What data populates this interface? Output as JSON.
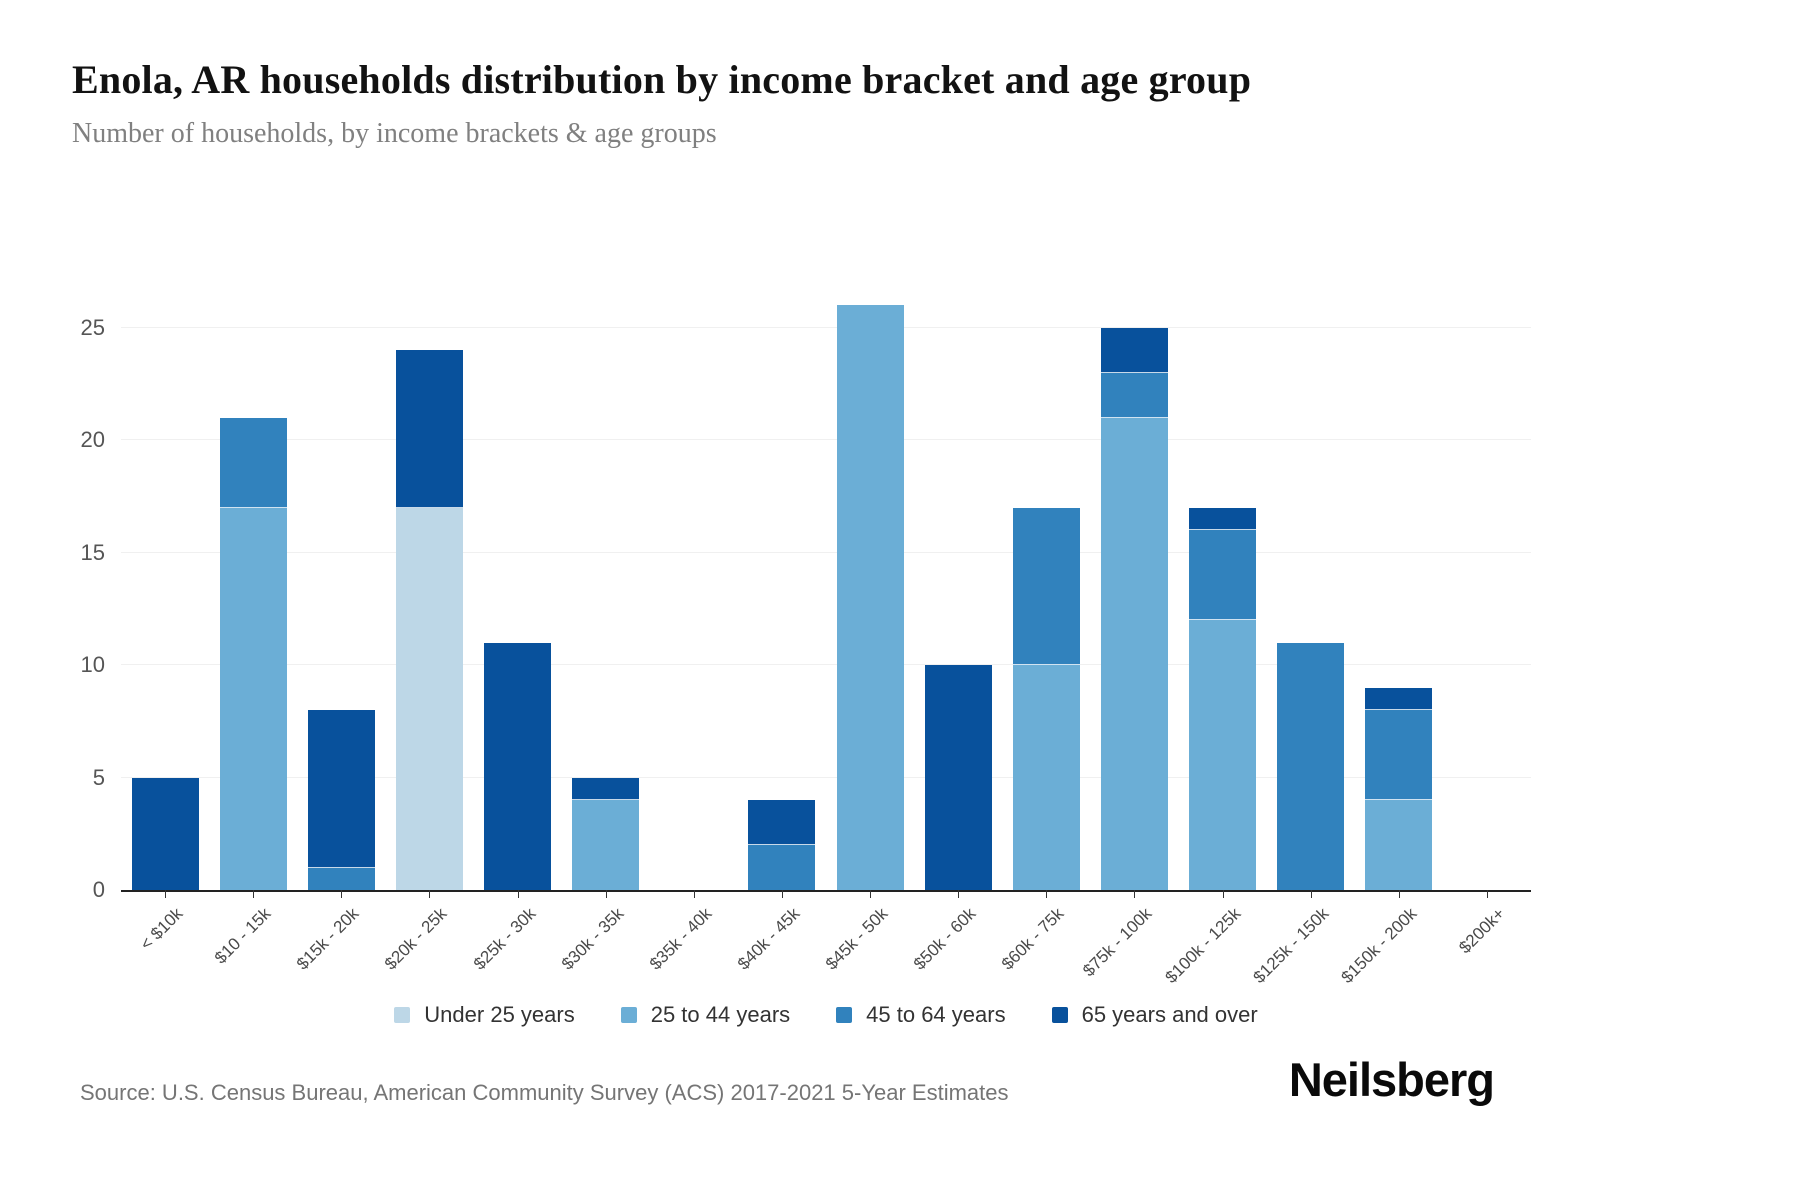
{
  "header": {
    "title": "Enola, AR households distribution by income bracket and age group",
    "subtitle": "Number of households, by income brackets & age groups"
  },
  "footer": {
    "source": "Source: U.S. Census Bureau, American Community Survey (ACS) 2017-2021 5-Year Estimates",
    "brand": "Neilsberg"
  },
  "colors": {
    "under_25": "#bdd7e7",
    "age_25_44": "#6baed6",
    "age_45_64": "#3182bd",
    "age_65_over": "#08519c",
    "axis_line": "#222222",
    "gridline": "#f0f0f0"
  },
  "chart_data": {
    "type": "bar",
    "stacked": true,
    "title": "Enola, AR households distribution by income bracket and age group",
    "xlabel": "",
    "ylabel": "Number of households",
    "ylim": [
      0,
      26
    ],
    "yticks": [
      0,
      5,
      10,
      15,
      20,
      25
    ],
    "grid": true,
    "legend_position": "bottom",
    "categories": [
      "< $10k",
      "$10 - 15k",
      "$15k - 20k",
      "$20k - 25k",
      "$25k - 30k",
      "$30k - 35k",
      "$35k - 40k",
      "$40k - 45k",
      "$45k - 50k",
      "$50k - 60k",
      "$60k - 75k",
      "$75k - 100k",
      "$100k - 125k",
      "$125k - 150k",
      "$150k - 200k",
      "$200k+"
    ],
    "series": [
      {
        "name": "Under 25 years",
        "color": "#bdd7e7",
        "values": [
          0,
          0,
          0,
          17,
          0,
          0,
          0,
          0,
          0,
          0,
          0,
          0,
          0,
          0,
          0,
          0
        ]
      },
      {
        "name": "25 to 44 years",
        "color": "#6baed6",
        "values": [
          0,
          17,
          0,
          0,
          0,
          4,
          0,
          0,
          26,
          0,
          10,
          21,
          12,
          0,
          4,
          0
        ]
      },
      {
        "name": "45 to 64 years",
        "color": "#3182bd",
        "values": [
          0,
          4,
          1,
          0,
          0,
          0,
          0,
          2,
          0,
          0,
          7,
          2,
          4,
          11,
          4,
          0
        ]
      },
      {
        "name": "65 years and over",
        "color": "#08519c",
        "values": [
          5,
          0,
          7,
          7,
          11,
          1,
          0,
          2,
          0,
          10,
          0,
          2,
          1,
          0,
          1,
          0
        ]
      }
    ],
    "totals": [
      5,
      21,
      8,
      24,
      11,
      5,
      0,
      4,
      26,
      10,
      17,
      25,
      17,
      11,
      9,
      0
    ]
  }
}
